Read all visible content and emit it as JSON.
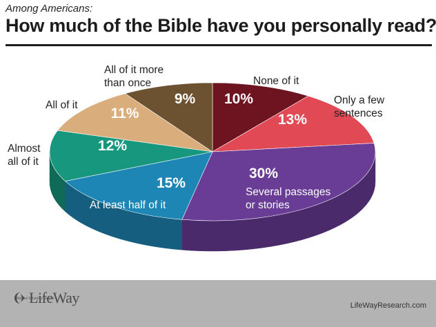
{
  "header": {
    "subtitle": "Among Americans:",
    "title": "How much of the Bible have you personally read?"
  },
  "chart_data": {
    "type": "pie",
    "title": "How much of the Bible have you personally read?",
    "subtitle": "Among Americans:",
    "slices": [
      {
        "label": "None of it",
        "value": 10,
        "display": "10%",
        "color": "#6e1420",
        "side": "#4a0d16"
      },
      {
        "label": "Only a few sentences",
        "value": 13,
        "display": "13%",
        "color": "#e14a55",
        "side": "#a8353d"
      },
      {
        "label": "Several passages or stories",
        "value": 30,
        "display": "30%",
        "color": "#693c96",
        "side": "#4a2a6a"
      },
      {
        "label": "At least half of it",
        "value": 15,
        "display": "15%",
        "color": "#1e86b4",
        "side": "#165e80"
      },
      {
        "label": "Almost all of it",
        "value": 12,
        "display": "12%",
        "color": "#17977d",
        "side": "#0f6a58"
      },
      {
        "label": "All of it",
        "value": 11,
        "display": "11%",
        "color": "#d9ad7c",
        "side": "#a07d56"
      },
      {
        "label": "All of it more than once",
        "value": 9,
        "display": "9%",
        "color": "#6c5230",
        "side": "#4a3820"
      }
    ]
  },
  "footer": {
    "logo_text": "LifeWay",
    "logo_tagline": "Biblical Solutions for Life",
    "website": "LifeWayResearch.com",
    "background": "#b3b3b3"
  }
}
